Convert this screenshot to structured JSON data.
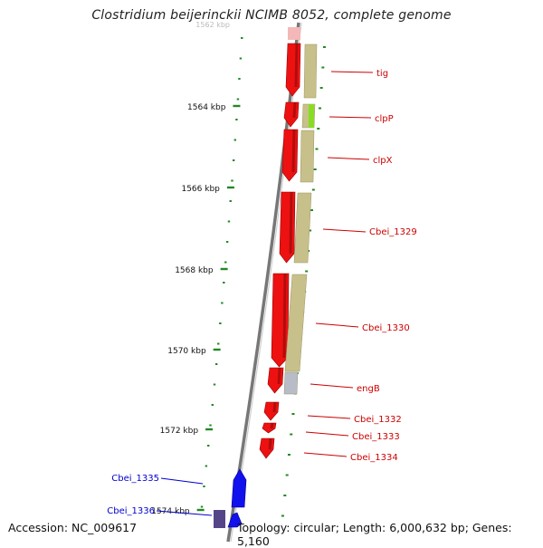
{
  "title": "Clostridium beijerinckii NCIMB 8052, complete genome",
  "ticks": {
    "first_partial": "1562 kbp",
    "labels": [
      "1564 kbp",
      "1566 kbp",
      "1568 kbp",
      "1570 kbp",
      "1572 kbp",
      "1574 kbp"
    ]
  },
  "genes": [
    {
      "name": "tig",
      "color": "#cc0000"
    },
    {
      "name": "clpP",
      "color": "#cc0000"
    },
    {
      "name": "clpX",
      "color": "#cc0000"
    },
    {
      "name": "Cbei_1329",
      "color": "#cc0000"
    },
    {
      "name": "Cbei_1330",
      "color": "#cc0000"
    },
    {
      "name": "engB",
      "color": "#cc0000"
    },
    {
      "name": "Cbei_1332",
      "color": "#cc0000"
    },
    {
      "name": "Cbei_1333",
      "color": "#cc0000"
    },
    {
      "name": "Cbei_1334",
      "color": "#cc0000"
    },
    {
      "name": "Cbei_1335",
      "color": "#0000cc"
    },
    {
      "name": "Cbei_1336",
      "color": "#0000cc"
    }
  ],
  "colors": {
    "forward_feature": "#ee1111",
    "reverse_feature": "#1111ee",
    "cog_tan": "#c8c08a",
    "cog_green": "#88dd22",
    "cog_grey": "#b8bcc8",
    "cog_purple": "#554488",
    "tick_green": "#228822",
    "backbone": "#888888"
  },
  "footer": {
    "accession": "Accession: NC_009617",
    "topology": "Topology: circular; Length: 6,000,632 bp; Genes: 5,160"
  }
}
